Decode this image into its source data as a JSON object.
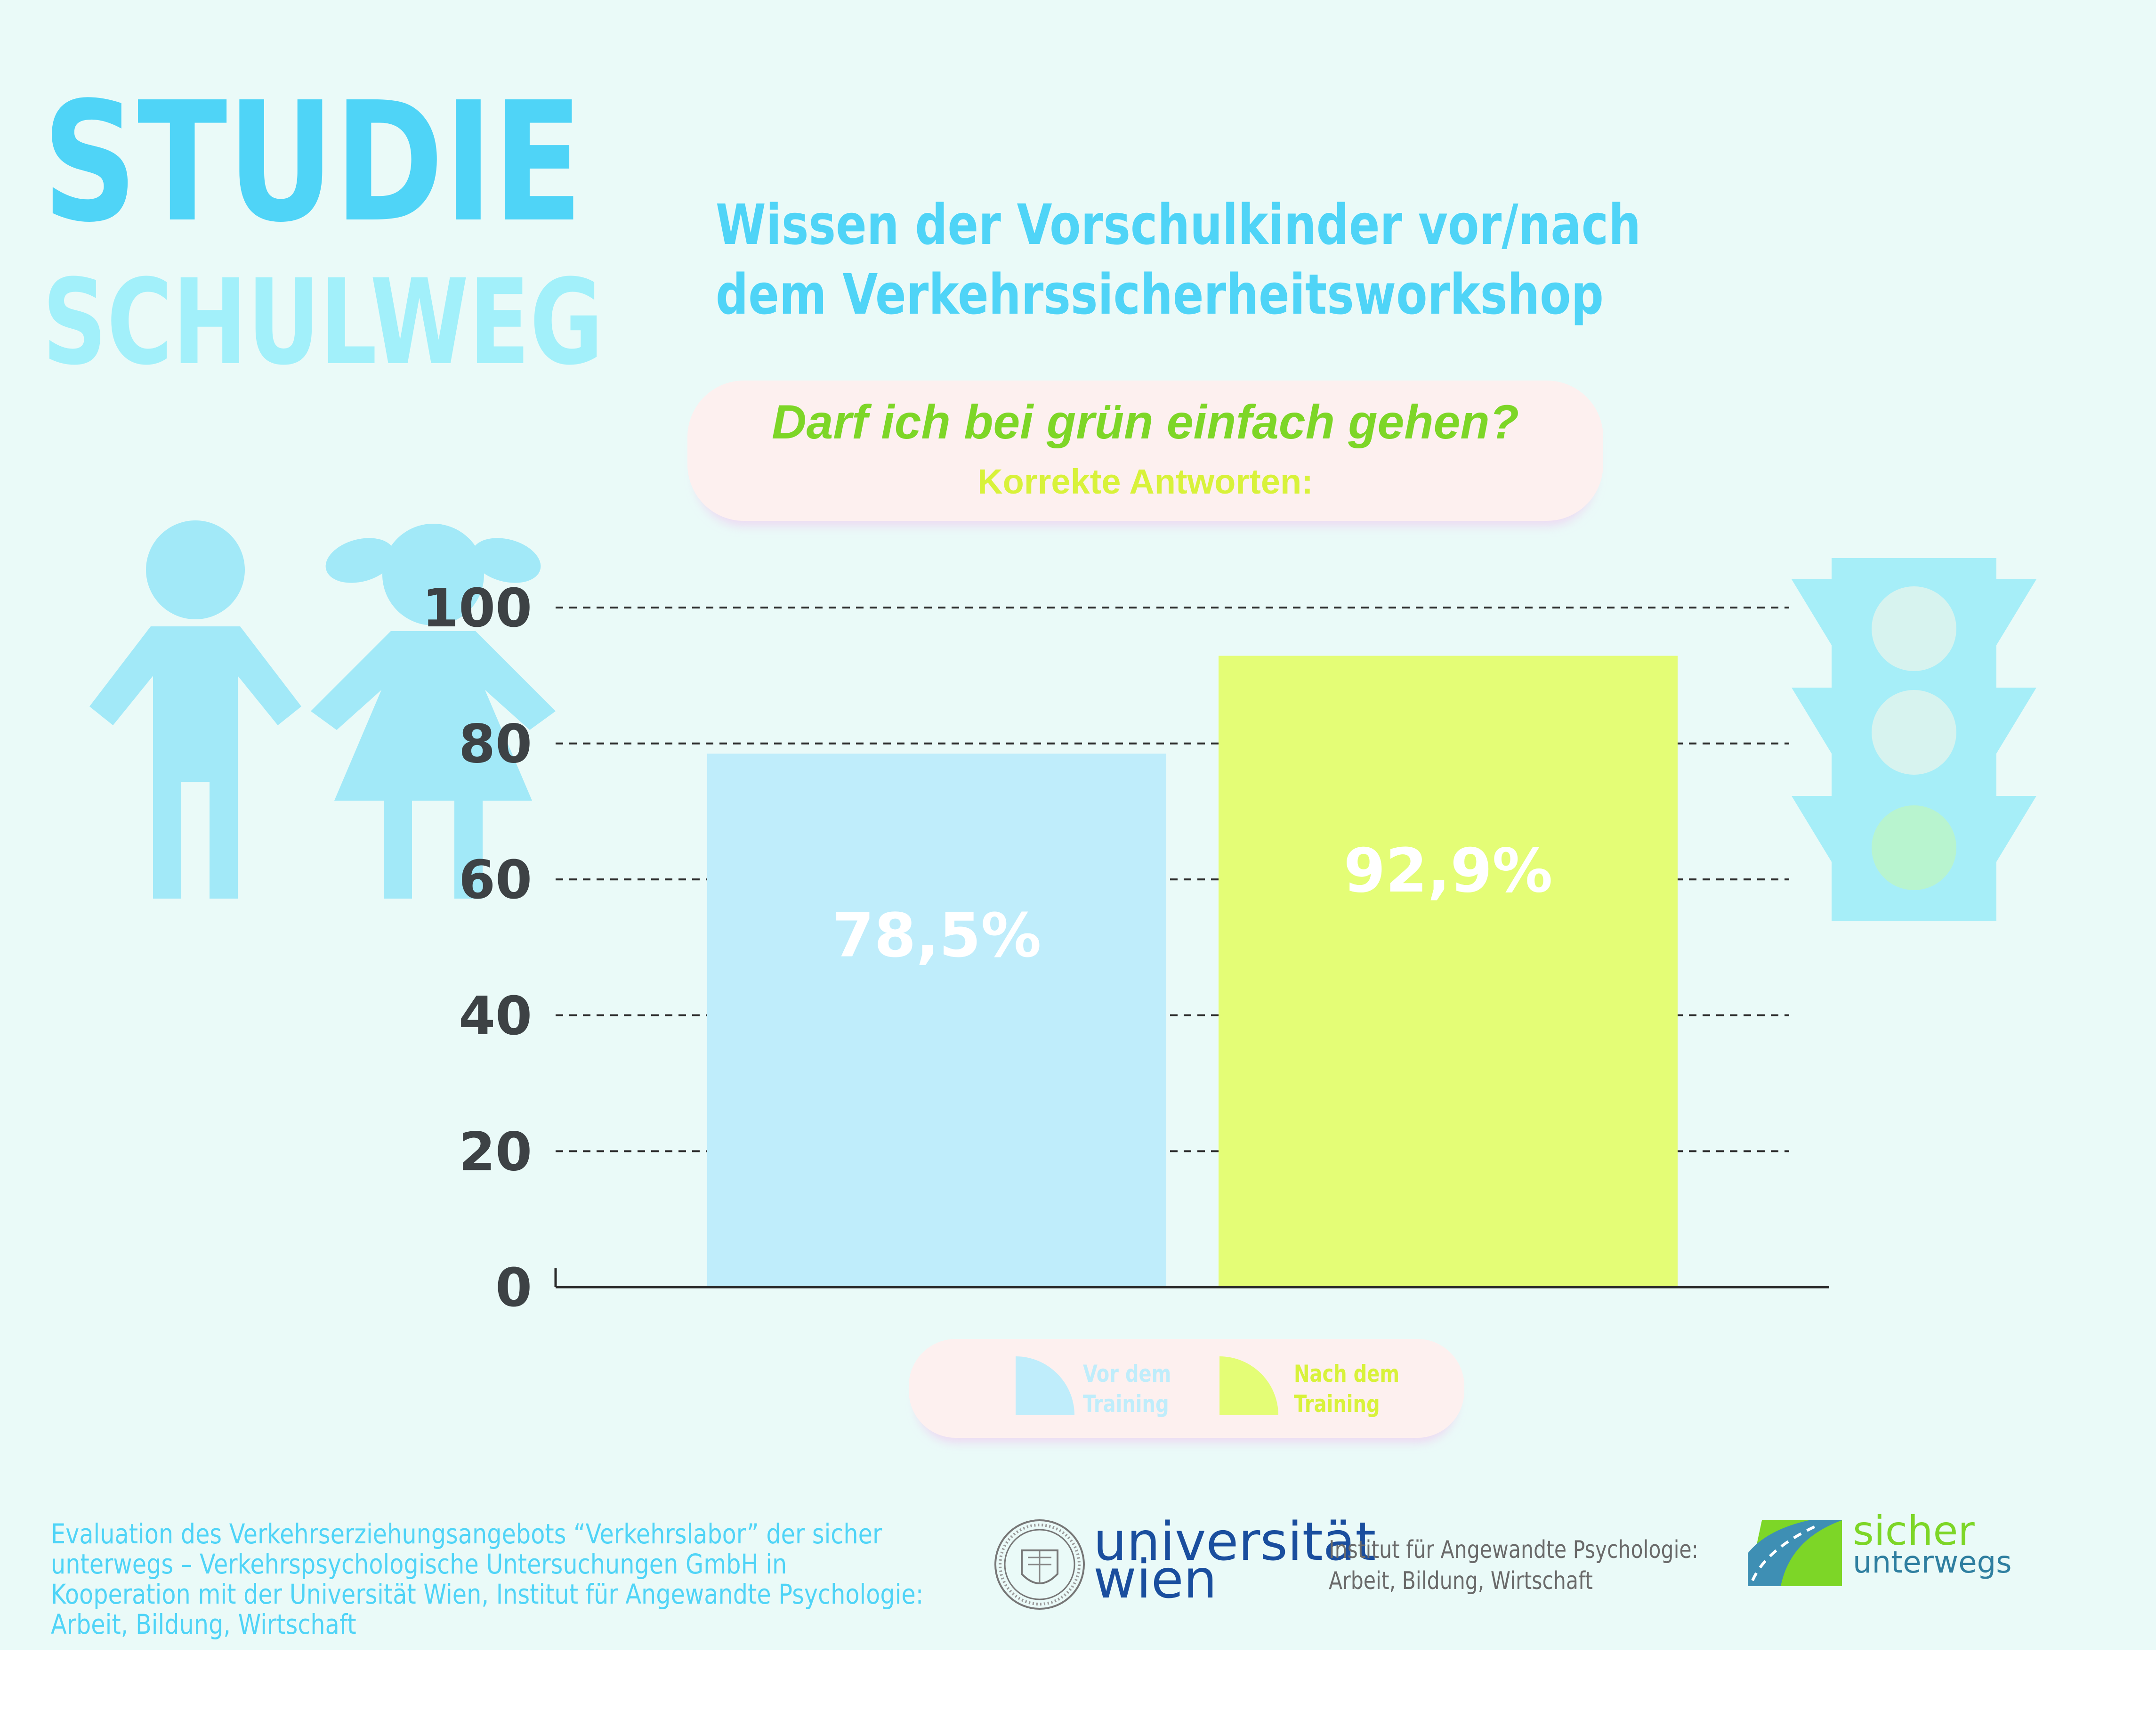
{
  "logo": {
    "line1": "STUDIE",
    "line2": "SCHULWEG"
  },
  "headline": {
    "line1": "Wissen der Vorschulkinder vor/nach",
    "line2": "dem Verkehrssicherheitsworkshop"
  },
  "question": {
    "text": "Darf ich bei grün einfach gehen?",
    "subtext": "Korrekte Antworten:"
  },
  "colors": {
    "cyan": "#4fd4f7",
    "bar_before": "#bfedfb",
    "bar_after": "#e4fd76",
    "green_text": "#7dd627",
    "yellow_text": "#d8f23a",
    "axis_text": "#3d4245",
    "pill_bg": "#fdf0ef",
    "icon_blue": "#a2e9f8"
  },
  "chart_data": {
    "type": "bar",
    "categories": [
      "Vor dem Training",
      "Nach dem Training"
    ],
    "values": [
      78.5,
      92.9
    ],
    "value_labels": [
      "78,5%",
      "92,9%"
    ],
    "ylim": [
      0,
      100
    ],
    "yticks": [
      0,
      20,
      40,
      60,
      80,
      100
    ],
    "grid": "dashed horizontal",
    "legend": "bottom-center",
    "title": "Darf ich bei grün einfach gehen?",
    "subtitle": "Korrekte Antworten:"
  },
  "legend": {
    "before": {
      "line1": "Vor dem",
      "line2": "Training"
    },
    "after": {
      "line1": "Nach dem",
      "line2": "Training"
    }
  },
  "footer": {
    "note": "Evaluation des Verkehrserziehungsangebots “Verkehrslabor” der sicher unterwegs – Verkehrspsychologische Untersuchungen GmbH in Kooperation mit der Universität Wien, Institut für Angewandte Psychologie: Arbeit, Bildung, Wirtschaft",
    "university_line1": "universität",
    "university_line2": "wien",
    "institute_line1": "Institut für Angewandte Psychologie:",
    "institute_line2": "Arbeit, Bildung, Wirtschaft",
    "brand_line1": "sicher",
    "brand_line2": "unterwegs"
  },
  "icons": [
    "boy-icon",
    "girl-icon",
    "traffic-light-icon",
    "university-seal-icon",
    "road-logo-icon"
  ]
}
